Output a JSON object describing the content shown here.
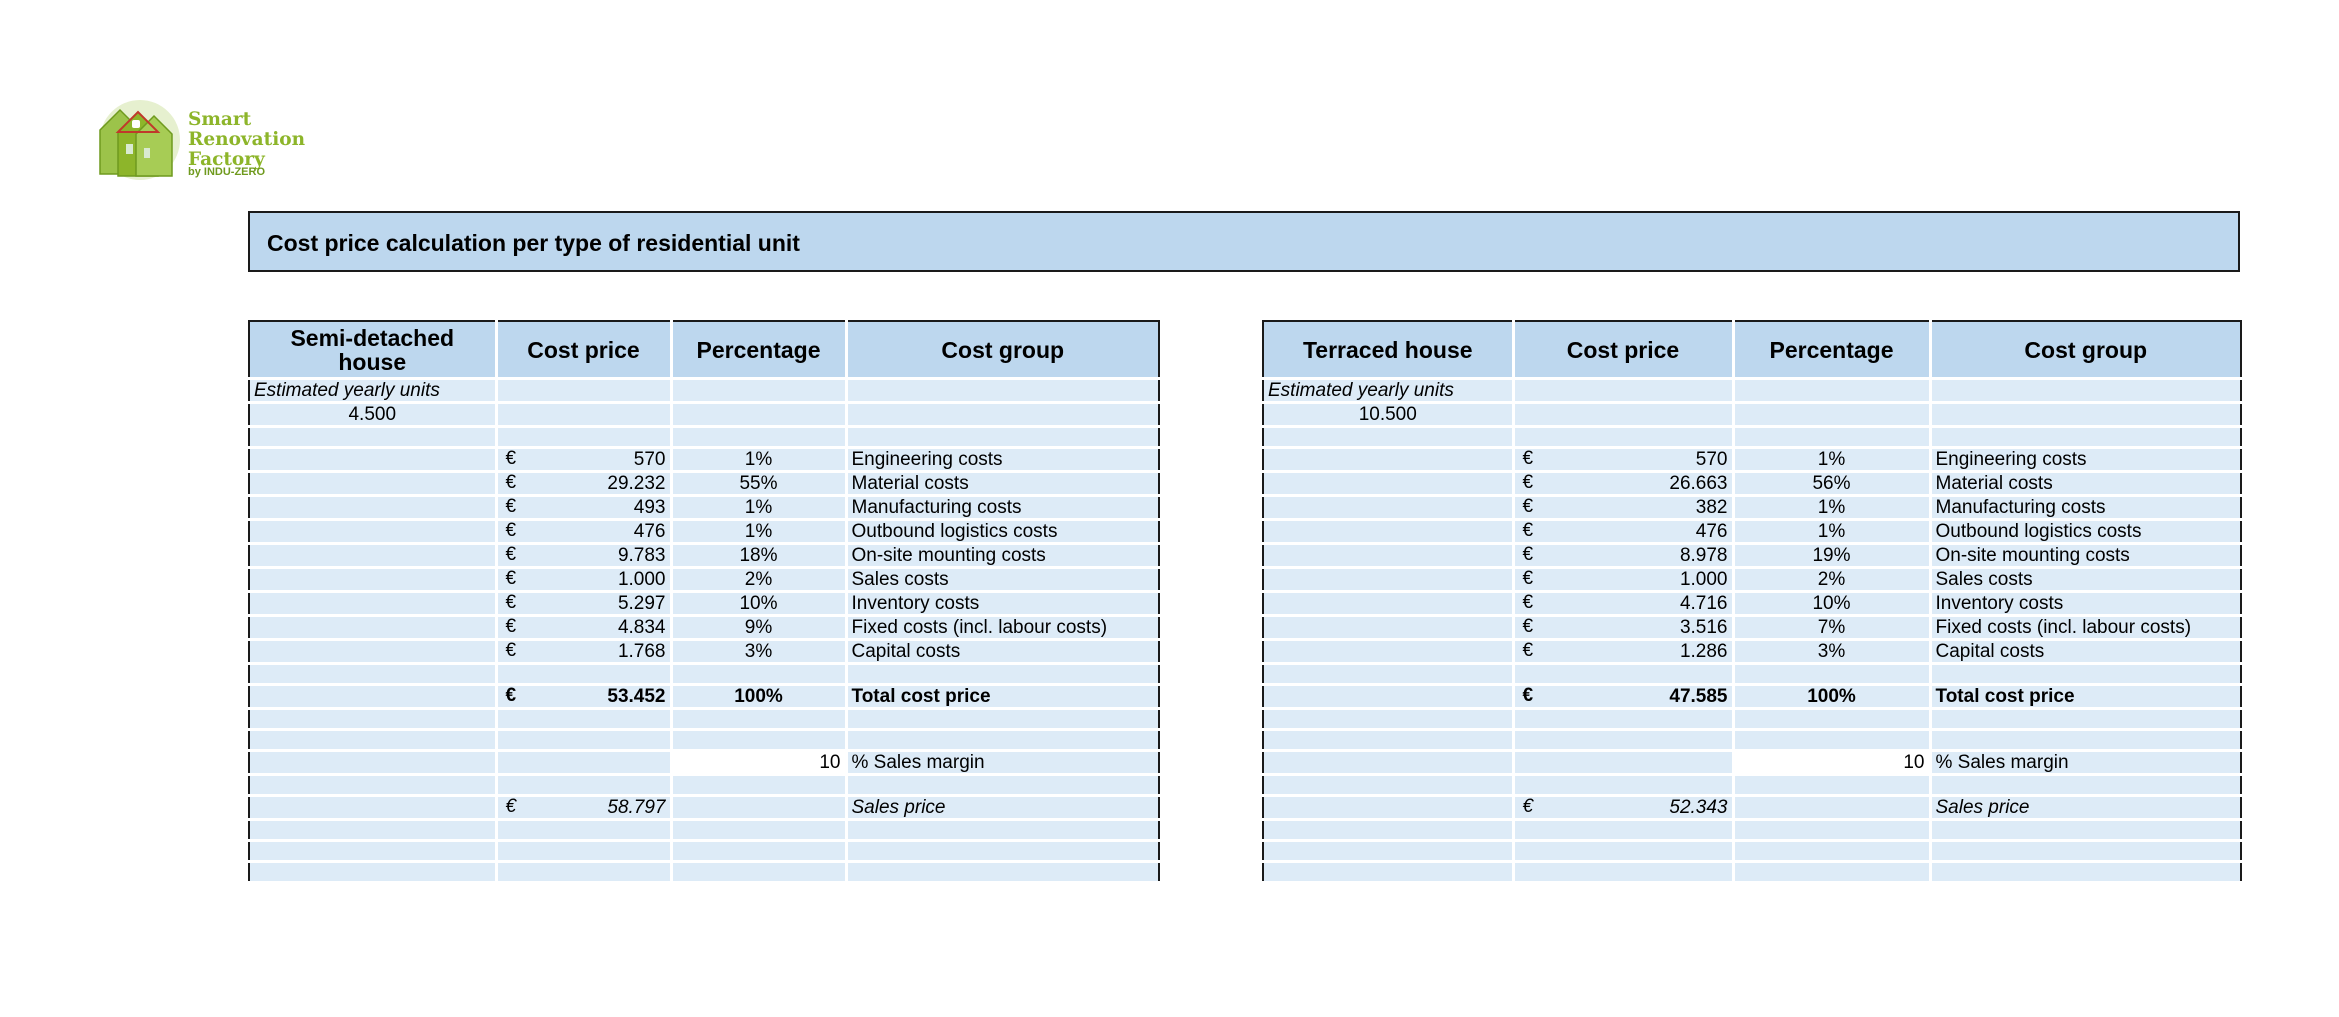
{
  "logo": {
    "line1": "Smart",
    "line2": "Renovation",
    "line3": "Factory",
    "sub": "by INDU-ZERO",
    "colors": {
      "green": "#8db52a",
      "red": "#c0392b"
    }
  },
  "title": "Cost price calculation per type of residential unit",
  "currency": "€",
  "estimated_label": "Estimated yearly units",
  "tables": [
    {
      "headers": [
        "Semi-detached house",
        "Cost price",
        "Percentage",
        "Cost group"
      ],
      "estimated_units": "4.500",
      "rows": [
        {
          "amount": "570",
          "pct": "1%",
          "group": "Engineering costs"
        },
        {
          "amount": "29.232",
          "pct": "55%",
          "group": "Material costs"
        },
        {
          "amount": "493",
          "pct": "1%",
          "group": "Manufacturing costs"
        },
        {
          "amount": "476",
          "pct": "1%",
          "group": "Outbound logistics costs"
        },
        {
          "amount": "9.783",
          "pct": "18%",
          "group": "On-site mounting costs"
        },
        {
          "amount": "1.000",
          "pct": "2%",
          "group": "Sales costs"
        },
        {
          "amount": "5.297",
          "pct": "10%",
          "group": "Inventory costs"
        },
        {
          "amount": "4.834",
          "pct": "9%",
          "group": "Fixed costs (incl. labour costs)"
        },
        {
          "amount": "1.768",
          "pct": "3%",
          "group": "Capital costs"
        }
      ],
      "total": {
        "amount": "53.452",
        "pct": "100%",
        "label": "Total cost price"
      },
      "margin": {
        "value": "10",
        "label": "% Sales margin"
      },
      "sales": {
        "amount": "58.797",
        "label": "Sales price"
      }
    },
    {
      "headers": [
        "Terraced house",
        "Cost price",
        "Percentage",
        "Cost group"
      ],
      "estimated_units": "10.500",
      "rows": [
        {
          "amount": "570",
          "pct": "1%",
          "group": "Engineering costs"
        },
        {
          "amount": "26.663",
          "pct": "56%",
          "group": "Material costs"
        },
        {
          "amount": "382",
          "pct": "1%",
          "group": "Manufacturing costs"
        },
        {
          "amount": "476",
          "pct": "1%",
          "group": "Outbound logistics costs"
        },
        {
          "amount": "8.978",
          "pct": "19%",
          "group": "On-site mounting costs"
        },
        {
          "amount": "1.000",
          "pct": "2%",
          "group": "Sales costs"
        },
        {
          "amount": "4.716",
          "pct": "10%",
          "group": "Inventory costs"
        },
        {
          "amount": "3.516",
          "pct": "7%",
          "group": "Fixed costs (incl. labour costs)"
        },
        {
          "amount": "1.286",
          "pct": "3%",
          "group": "Capital costs"
        }
      ],
      "total": {
        "amount": "47.585",
        "pct": "100%",
        "label": "Total cost price"
      },
      "margin": {
        "value": "10",
        "label": "% Sales margin"
      },
      "sales": {
        "amount": "52.343",
        "label": "Sales price"
      }
    }
  ]
}
